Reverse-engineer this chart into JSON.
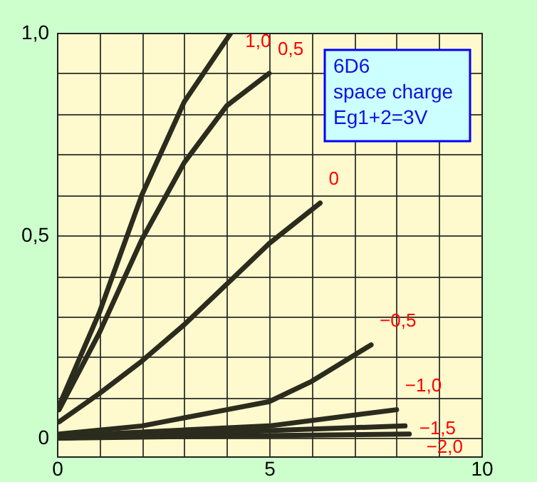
{
  "chart_data": {
    "type": "line",
    "xlim": [
      0,
      10
    ],
    "ylim": [
      -0.045,
      1.0
    ],
    "xticks": [
      0,
      {
        "value": 1,
        "label": null
      },
      {
        "value": 2,
        "label": null
      },
      {
        "value": 3,
        "label": null
      },
      {
        "value": 4,
        "label": null
      },
      5,
      {
        "value": 6,
        "label": null
      },
      {
        "value": 7,
        "label": null
      },
      {
        "value": 8,
        "label": null
      },
      {
        "value": 9,
        "label": null
      },
      10
    ],
    "yticks": [
      0,
      {
        "value": 0.1,
        "label": null
      },
      {
        "value": 0.2,
        "label": null
      },
      {
        "value": 0.3,
        "label": null
      },
      {
        "value": 0.4,
        "label": null
      },
      {
        "value": 0.5,
        "label": "0,5"
      },
      {
        "value": 0.6,
        "label": null
      },
      {
        "value": 0.7,
        "label": null
      },
      {
        "value": 0.8,
        "label": null
      },
      {
        "value": 0.9,
        "label": null
      },
      {
        "value": 1.0,
        "label": "1,0"
      }
    ],
    "grid": true,
    "marker": "none",
    "line_style": "solid",
    "annotations": [
      "6D6",
      "space charge",
      "Eg1+2=3V"
    ],
    "series": [
      {
        "name": "1,0",
        "color": "#2b2b1e",
        "x": [
          0.05,
          1,
          2,
          3,
          4.1
        ],
        "values": [
          0.08,
          0.31,
          0.6,
          0.83,
          1.0
        ]
      },
      {
        "name": "0,5",
        "color": "#2b2b1e",
        "x": [
          0.05,
          1,
          2,
          3,
          4,
          5
        ],
        "values": [
          0.07,
          0.26,
          0.49,
          0.68,
          0.82,
          0.9
        ]
      },
      {
        "name": "0",
        "color": "#2b2b1e",
        "x": [
          0.05,
          1,
          2,
          3,
          4,
          5,
          6.2
        ],
        "values": [
          0.04,
          0.11,
          0.19,
          0.28,
          0.38,
          0.48,
          0.58
        ]
      },
      {
        "name": "−0,5",
        "color": "#2b2b1e",
        "x": [
          0.05,
          2,
          4,
          5,
          6,
          7.4
        ],
        "values": [
          0.01,
          0.03,
          0.07,
          0.09,
          0.14,
          0.23
        ]
      },
      {
        "name": "−1,0",
        "color": "#2b2b1e",
        "x": [
          0.05,
          3,
          5,
          8.0
        ],
        "values": [
          0.005,
          0.02,
          0.03,
          0.07
        ]
      },
      {
        "name": "−1,5",
        "color": "#2b2b1e",
        "x": [
          0.05,
          4,
          8.2
        ],
        "values": [
          0.0,
          0.015,
          0.03
        ]
      },
      {
        "name": "−2,0",
        "color": "#2b2b1e",
        "x": [
          0.05,
          4,
          8.3
        ],
        "values": [
          0.0,
          0.005,
          0.01
        ]
      }
    ]
  }
}
